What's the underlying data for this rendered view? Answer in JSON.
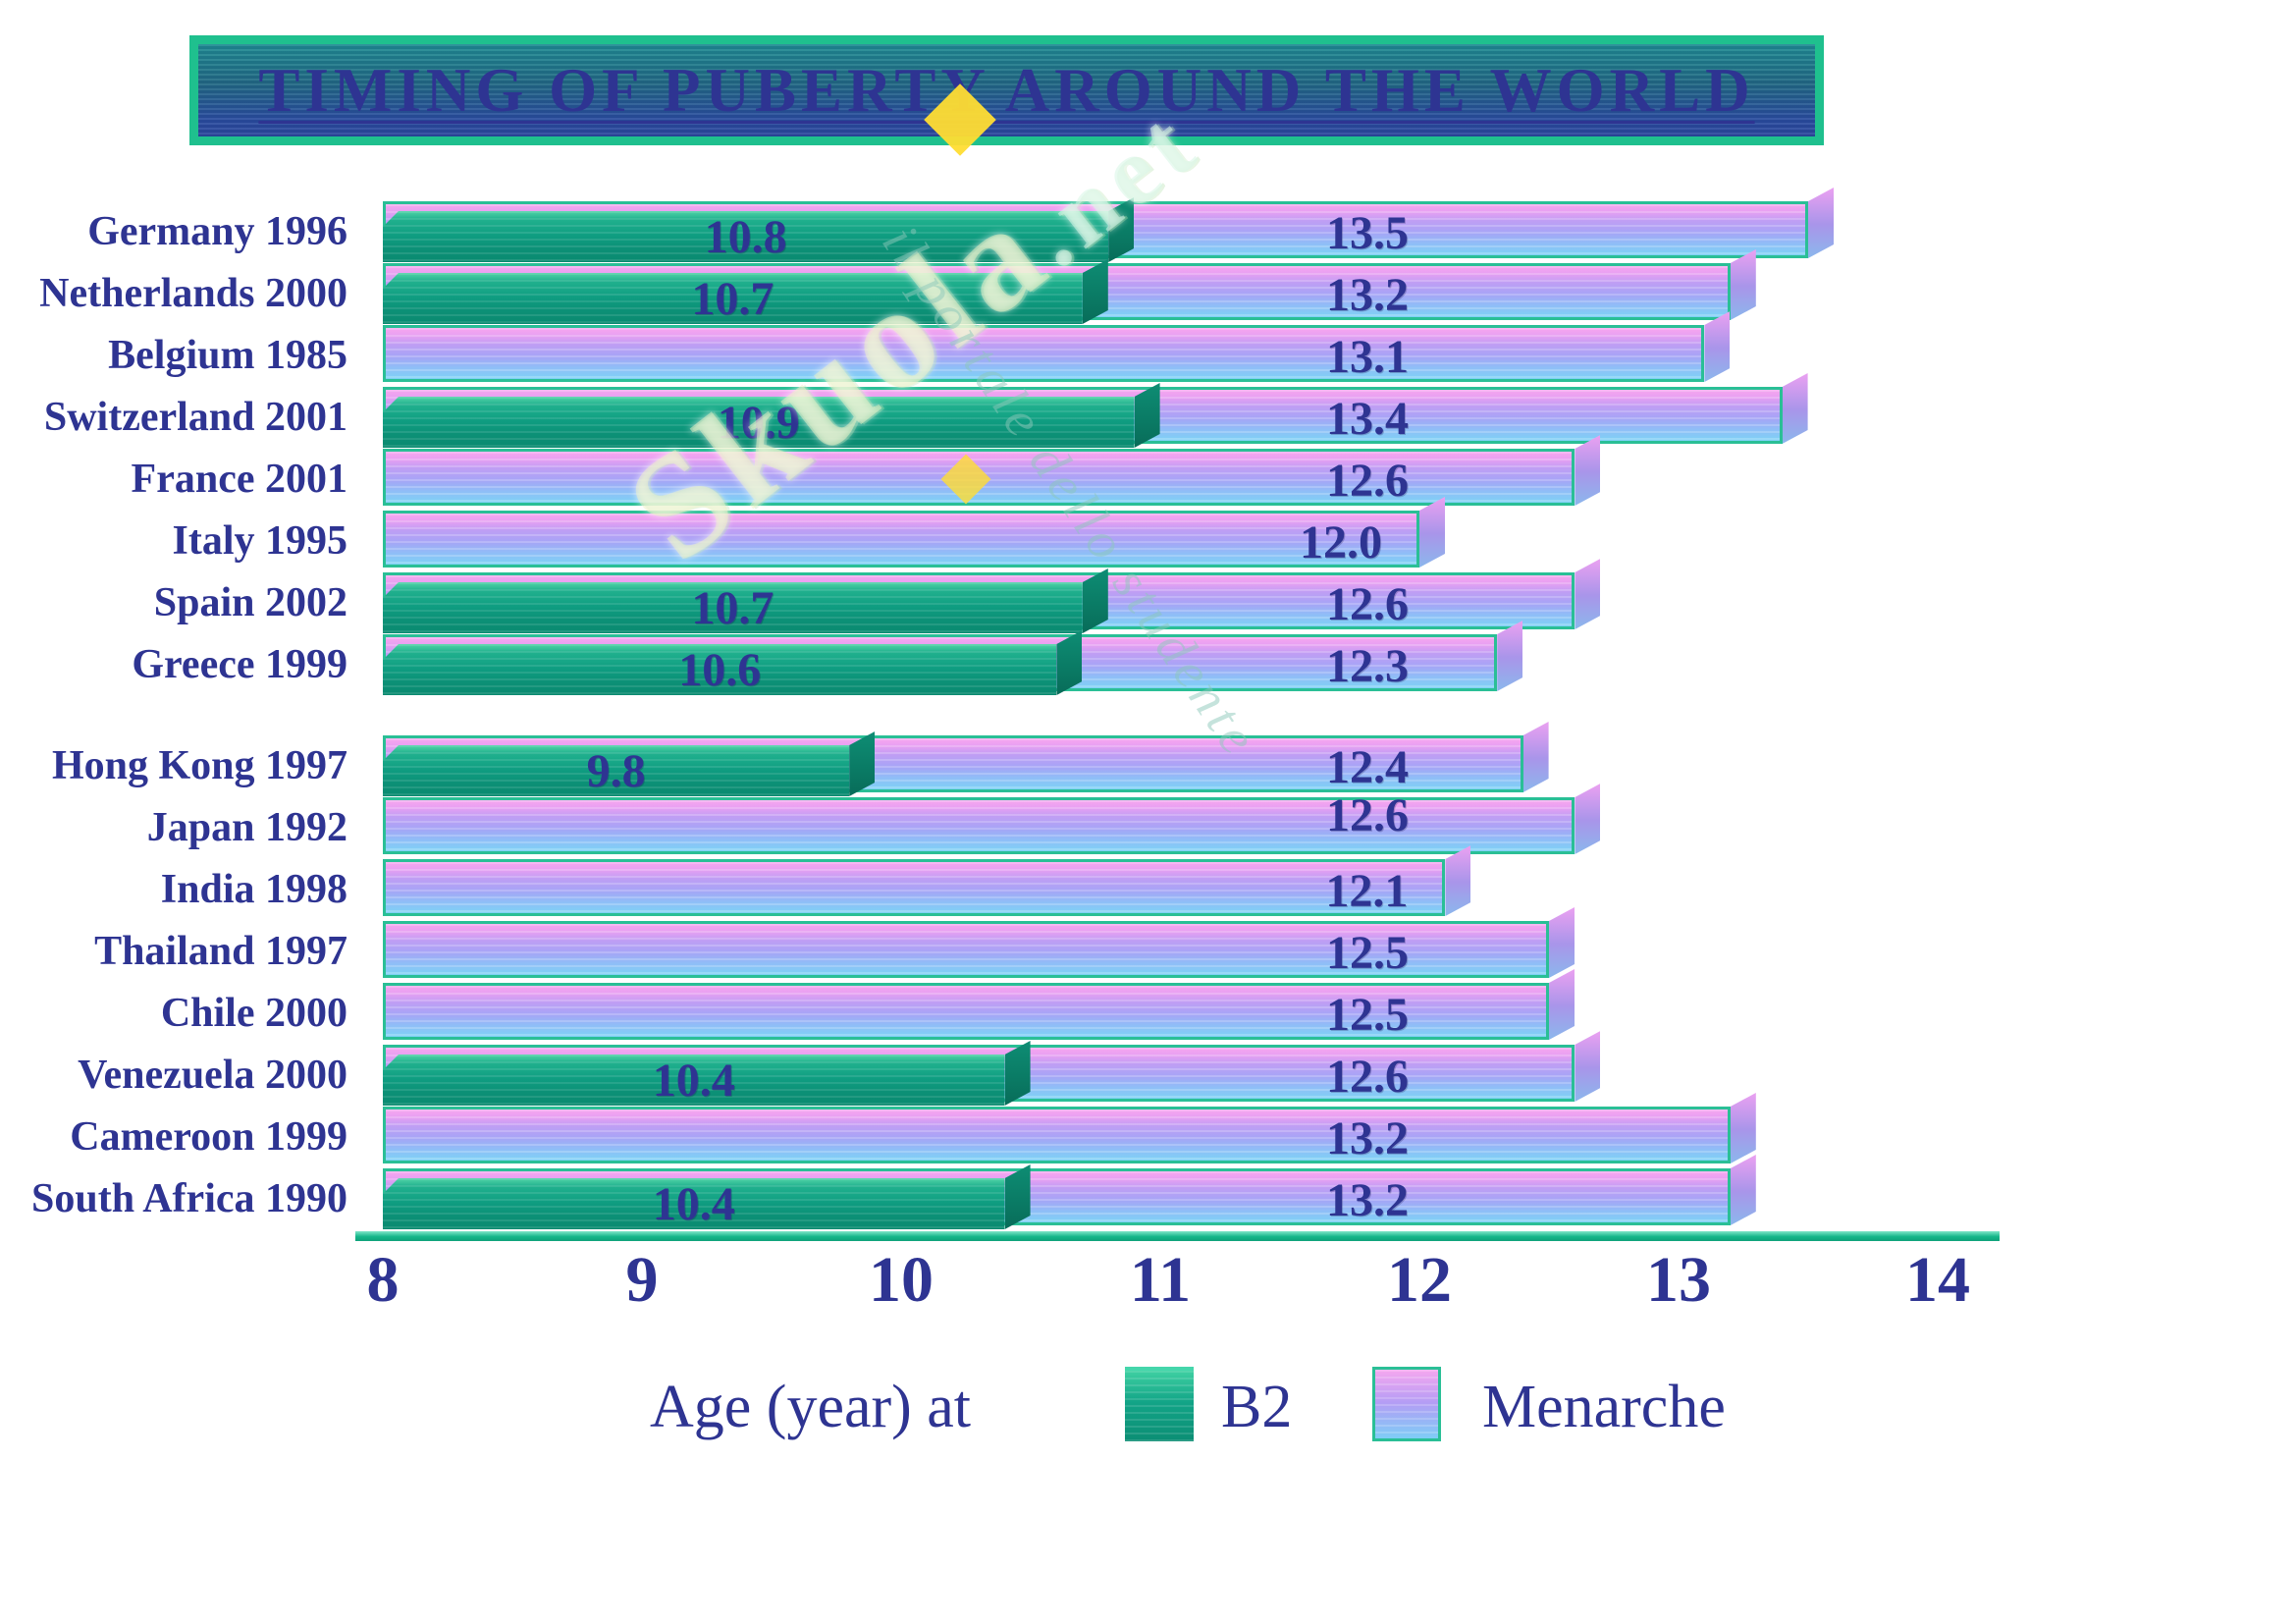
{
  "title": "TIMING OF PUBERTY AROUND THE WORLD",
  "watermark": {
    "main": "Skuola",
    "suffix": ".net",
    "tagline": "il portale dello studente"
  },
  "legend": {
    "axis_label": "Age (year) at",
    "b2_label": "B2",
    "menarche_label": "Menarche"
  },
  "axis": {
    "min": 8,
    "max": 14,
    "ticks": [
      "8",
      "9",
      "10",
      "11",
      "12",
      "13",
      "14"
    ]
  },
  "colors": {
    "text_navy": "#2e3492",
    "bar_border": "#2abf96",
    "b2_color": "#10a184",
    "menarche_color": "#ae9df4",
    "axis_line": "#14b689",
    "title_border": "#1fc08e",
    "title_bg_top": "#1f8d93",
    "title_bg_bottom": "#2a4d9f",
    "watermark_yellow": "#ffdd33"
  },
  "chart_data": {
    "type": "bar",
    "orientation": "horizontal",
    "title": "TIMING OF PUBERTY AROUND THE WORLD",
    "xlabel": "Age (year) at",
    "xlim": [
      8,
      14
    ],
    "grid": false,
    "legend_position": "bottom",
    "legend_entries": [
      "B2",
      "Menarche"
    ],
    "series_note": "B2 bars drawn in front of Menarche bars; rows without a B2 value show only Menarche",
    "rows": [
      {
        "label": "Germany 1996",
        "group": 1,
        "b2": "10.8",
        "menarche": "13.5"
      },
      {
        "label": "Netherlands 2000",
        "group": 1,
        "b2": "10.7",
        "menarche": "13.2"
      },
      {
        "label": "Belgium 1985",
        "group": 1,
        "menarche": "13.1"
      },
      {
        "label": "Switzerland 2001",
        "group": 1,
        "b2": "10.9",
        "menarche": "13.4"
      },
      {
        "label": "France 2001",
        "group": 1,
        "menarche": "12.6"
      },
      {
        "label": "Italy 1995",
        "group": 1,
        "menarche": "12.0"
      },
      {
        "label": "Spain 2002",
        "group": 1,
        "b2": "10.7",
        "menarche": "12.6"
      },
      {
        "label": "Greece 1999",
        "group": 1,
        "b2": "10.6",
        "menarche": "12.3"
      },
      {
        "label": "Hong Kong 1997",
        "group": 2,
        "b2": "9.8",
        "menarche": "12.4"
      },
      {
        "label": "Japan 1992",
        "group": 2,
        "menarche": "12.6"
      },
      {
        "label": "India 1998",
        "group": 2,
        "menarche": "12.1"
      },
      {
        "label": "Thailand 1997",
        "group": 2,
        "menarche": "12.5"
      },
      {
        "label": "Chile 2000",
        "group": 2,
        "menarche": "12.5"
      },
      {
        "label": "Venezuela 2000",
        "group": 2,
        "b2": "10.4",
        "menarche": "12.6"
      },
      {
        "label": "Cameroon 1999",
        "group": 2,
        "menarche": "13.2"
      },
      {
        "label": "South Africa 1990",
        "group": 2,
        "b2": "10.4",
        "menarche": "13.2"
      }
    ]
  }
}
